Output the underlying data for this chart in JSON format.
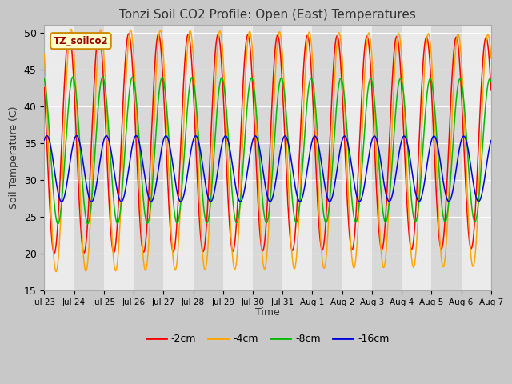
{
  "title": "Tonzi Soil CO2 Profile: Open (East) Temperatures",
  "ylabel": "Soil Temperature (C)",
  "xlabel": "Time",
  "ylim": [
    15,
    51
  ],
  "yticks": [
    15,
    20,
    25,
    30,
    35,
    40,
    45,
    50
  ],
  "legend_label": "TZ_soilco2",
  "series": [
    {
      "label": "-2cm",
      "color": "#ff0000"
    },
    {
      "label": "-4cm",
      "color": "#ffa500"
    },
    {
      "label": "-8cm",
      "color": "#00bb00"
    },
    {
      "label": "-16cm",
      "color": "#0000dd"
    }
  ],
  "n_days": 15,
  "x_tick_labels": [
    "Jul 23",
    "Jul 24",
    "Jul 25",
    "Jul 26",
    "Jul 27",
    "Jul 28",
    "Jul 29",
    "Jul 30",
    "Jul 31",
    "Aug 1",
    "Aug 2",
    "Aug 3",
    "Aug 4",
    "Aug 5",
    "Aug 6",
    "Aug 7"
  ],
  "params": {
    "-2cm": {
      "mean": 35.0,
      "amp": 15.0,
      "lag": 14.0,
      "amp_decay": 0.003
    },
    "-4cm": {
      "mean": 34.0,
      "amp": 16.5,
      "lag": 15.5,
      "amp_decay": 0.003
    },
    "-8cm": {
      "mean": 34.0,
      "amp": 10.0,
      "lag": 17.0,
      "amp_decay": 0.002
    },
    "-16cm": {
      "mean": 31.5,
      "amp": 4.5,
      "lag": 20.0,
      "amp_decay": 0.001
    }
  },
  "plot_bg": "#e8e8e8",
  "fig_bg": "#c8c8c8",
  "band_light": "#ebebeb",
  "band_dark": "#d8d8d8",
  "grid_color": "#ffffff"
}
